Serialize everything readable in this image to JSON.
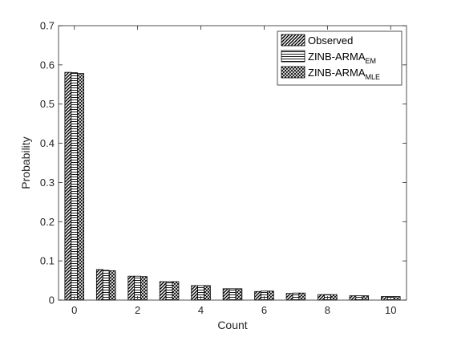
{
  "chart_data": {
    "type": "bar",
    "xlabel": "Count",
    "ylabel": "Probability",
    "ylim": [
      0,
      0.7
    ],
    "xlim": [
      -0.5,
      10.5
    ],
    "x": [
      0,
      1,
      2,
      3,
      4,
      5,
      6,
      7,
      8,
      9,
      10
    ],
    "xticks": [
      0,
      2,
      4,
      6,
      8,
      10
    ],
    "yticks": [
      0,
      0.1,
      0.2,
      0.3,
      0.4,
      0.5,
      0.6,
      0.7
    ],
    "grid": false,
    "legend_position": "top-right",
    "series": [
      {
        "name": "Observed",
        "pattern": "diagonal-hatch",
        "values": [
          0.581,
          0.078,
          0.061,
          0.047,
          0.037,
          0.029,
          0.022,
          0.017,
          0.014,
          0.011,
          0.009
        ]
      },
      {
        "name": "ZINB-ARMA",
        "subscript": "EM",
        "pattern": "horizontal-lines",
        "values": [
          0.58,
          0.076,
          0.061,
          0.047,
          0.037,
          0.029,
          0.023,
          0.018,
          0.014,
          0.011,
          0.009
        ]
      },
      {
        "name": "ZINB-ARMA",
        "subscript": "MLE",
        "pattern": "crosshatch",
        "values": [
          0.578,
          0.075,
          0.06,
          0.047,
          0.037,
          0.029,
          0.023,
          0.018,
          0.014,
          0.011,
          0.009
        ]
      }
    ]
  }
}
